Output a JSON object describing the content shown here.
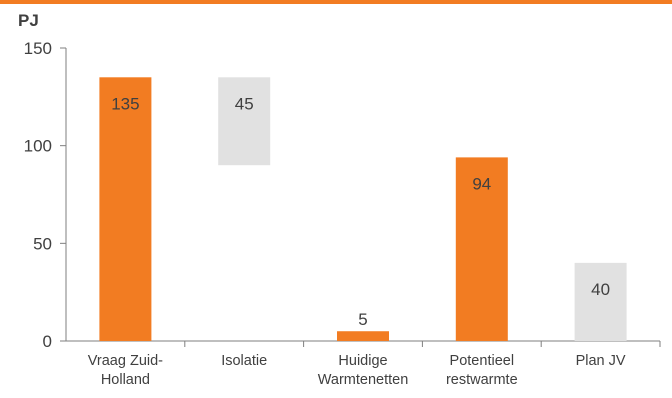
{
  "chart_data": {
    "type": "bar",
    "subtype": "waterfall",
    "title": "",
    "ylabel": "PJ",
    "xlabel": "",
    "ylim": [
      0,
      150
    ],
    "yticks": [
      0,
      50,
      100,
      150
    ],
    "grid": false,
    "legend": "none",
    "categories": [
      [
        "Vraag Zuid-",
        "Holland"
      ],
      [
        "Isolatie"
      ],
      [
        "Huidige",
        "Warmtenetten"
      ],
      [
        "Potentieel",
        "restwarmte"
      ],
      [
        "Plan JV"
      ]
    ],
    "bars": [
      {
        "base": 0,
        "top": 135,
        "label": "135",
        "kind": "orange"
      },
      {
        "base": 90,
        "top": 135,
        "label": "45",
        "kind": "gray"
      },
      {
        "base": 0,
        "top": 5,
        "label": "5",
        "kind": "orange"
      },
      {
        "base": 0,
        "top": 94,
        "label": "94",
        "kind": "orange"
      },
      {
        "base": 0,
        "top": 40,
        "label": "40",
        "kind": "gray"
      }
    ]
  },
  "colors": {
    "orange": "#f27c22",
    "gray": "#e1e1e1",
    "axis": "#7f7f7f",
    "text": "#404040",
    "top_band": "#f27c22"
  }
}
